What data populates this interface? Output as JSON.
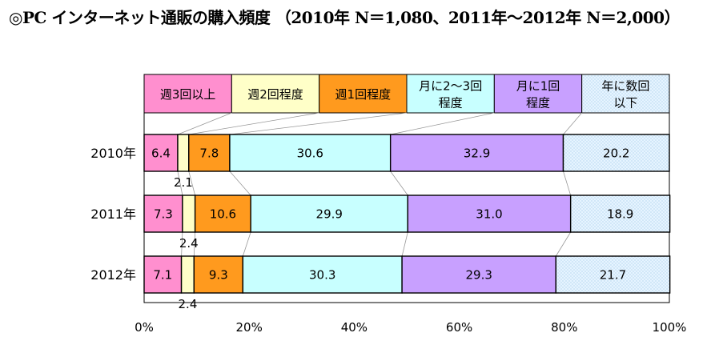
{
  "chart_data": {
    "type": "bar",
    "orientation": "horizontal",
    "stacked": true,
    "percent": true,
    "title": "◎PC インターネット通販の購入頻度 （2010年 N＝1,080、2011年～2012年 N＝2,000）",
    "categories": [
      "2010年",
      "2011年",
      "2012年"
    ],
    "series": [
      {
        "name": "週3回以上",
        "values": [
          6.4,
          7.3,
          7.1
        ],
        "color": "#ff8fcf"
      },
      {
        "name": "週2回程度",
        "values": [
          2.1,
          2.4,
          2.4
        ],
        "color": "#ffffc8"
      },
      {
        "name": "週1回程度",
        "values": [
          7.8,
          10.6,
          9.3
        ],
        "color": "#ff9a1e"
      },
      {
        "name": "月に2～3回程度",
        "values": [
          30.6,
          29.9,
          30.3
        ],
        "color": "#c8ffff"
      },
      {
        "name": "月に1回程度",
        "values": [
          32.9,
          31.0,
          29.3
        ],
        "color": "#c8a0ff"
      },
      {
        "name": "年に数回以下",
        "values": [
          20.2,
          18.9,
          21.7
        ],
        "color": "#e6f4ff"
      }
    ],
    "legend_labels": [
      [
        "週3回以上"
      ],
      [
        "週2回程度"
      ],
      [
        "週1回程度"
      ],
      [
        "月に2～3回",
        "程度"
      ],
      [
        "月に1回",
        "程度"
      ],
      [
        "年に数回",
        "以下"
      ]
    ],
    "x_ticks": [
      "0%",
      "20%",
      "40%",
      "60%",
      "80%",
      "100%"
    ],
    "xlim": [
      0,
      100
    ],
    "legend_position": "top",
    "grid": false
  }
}
